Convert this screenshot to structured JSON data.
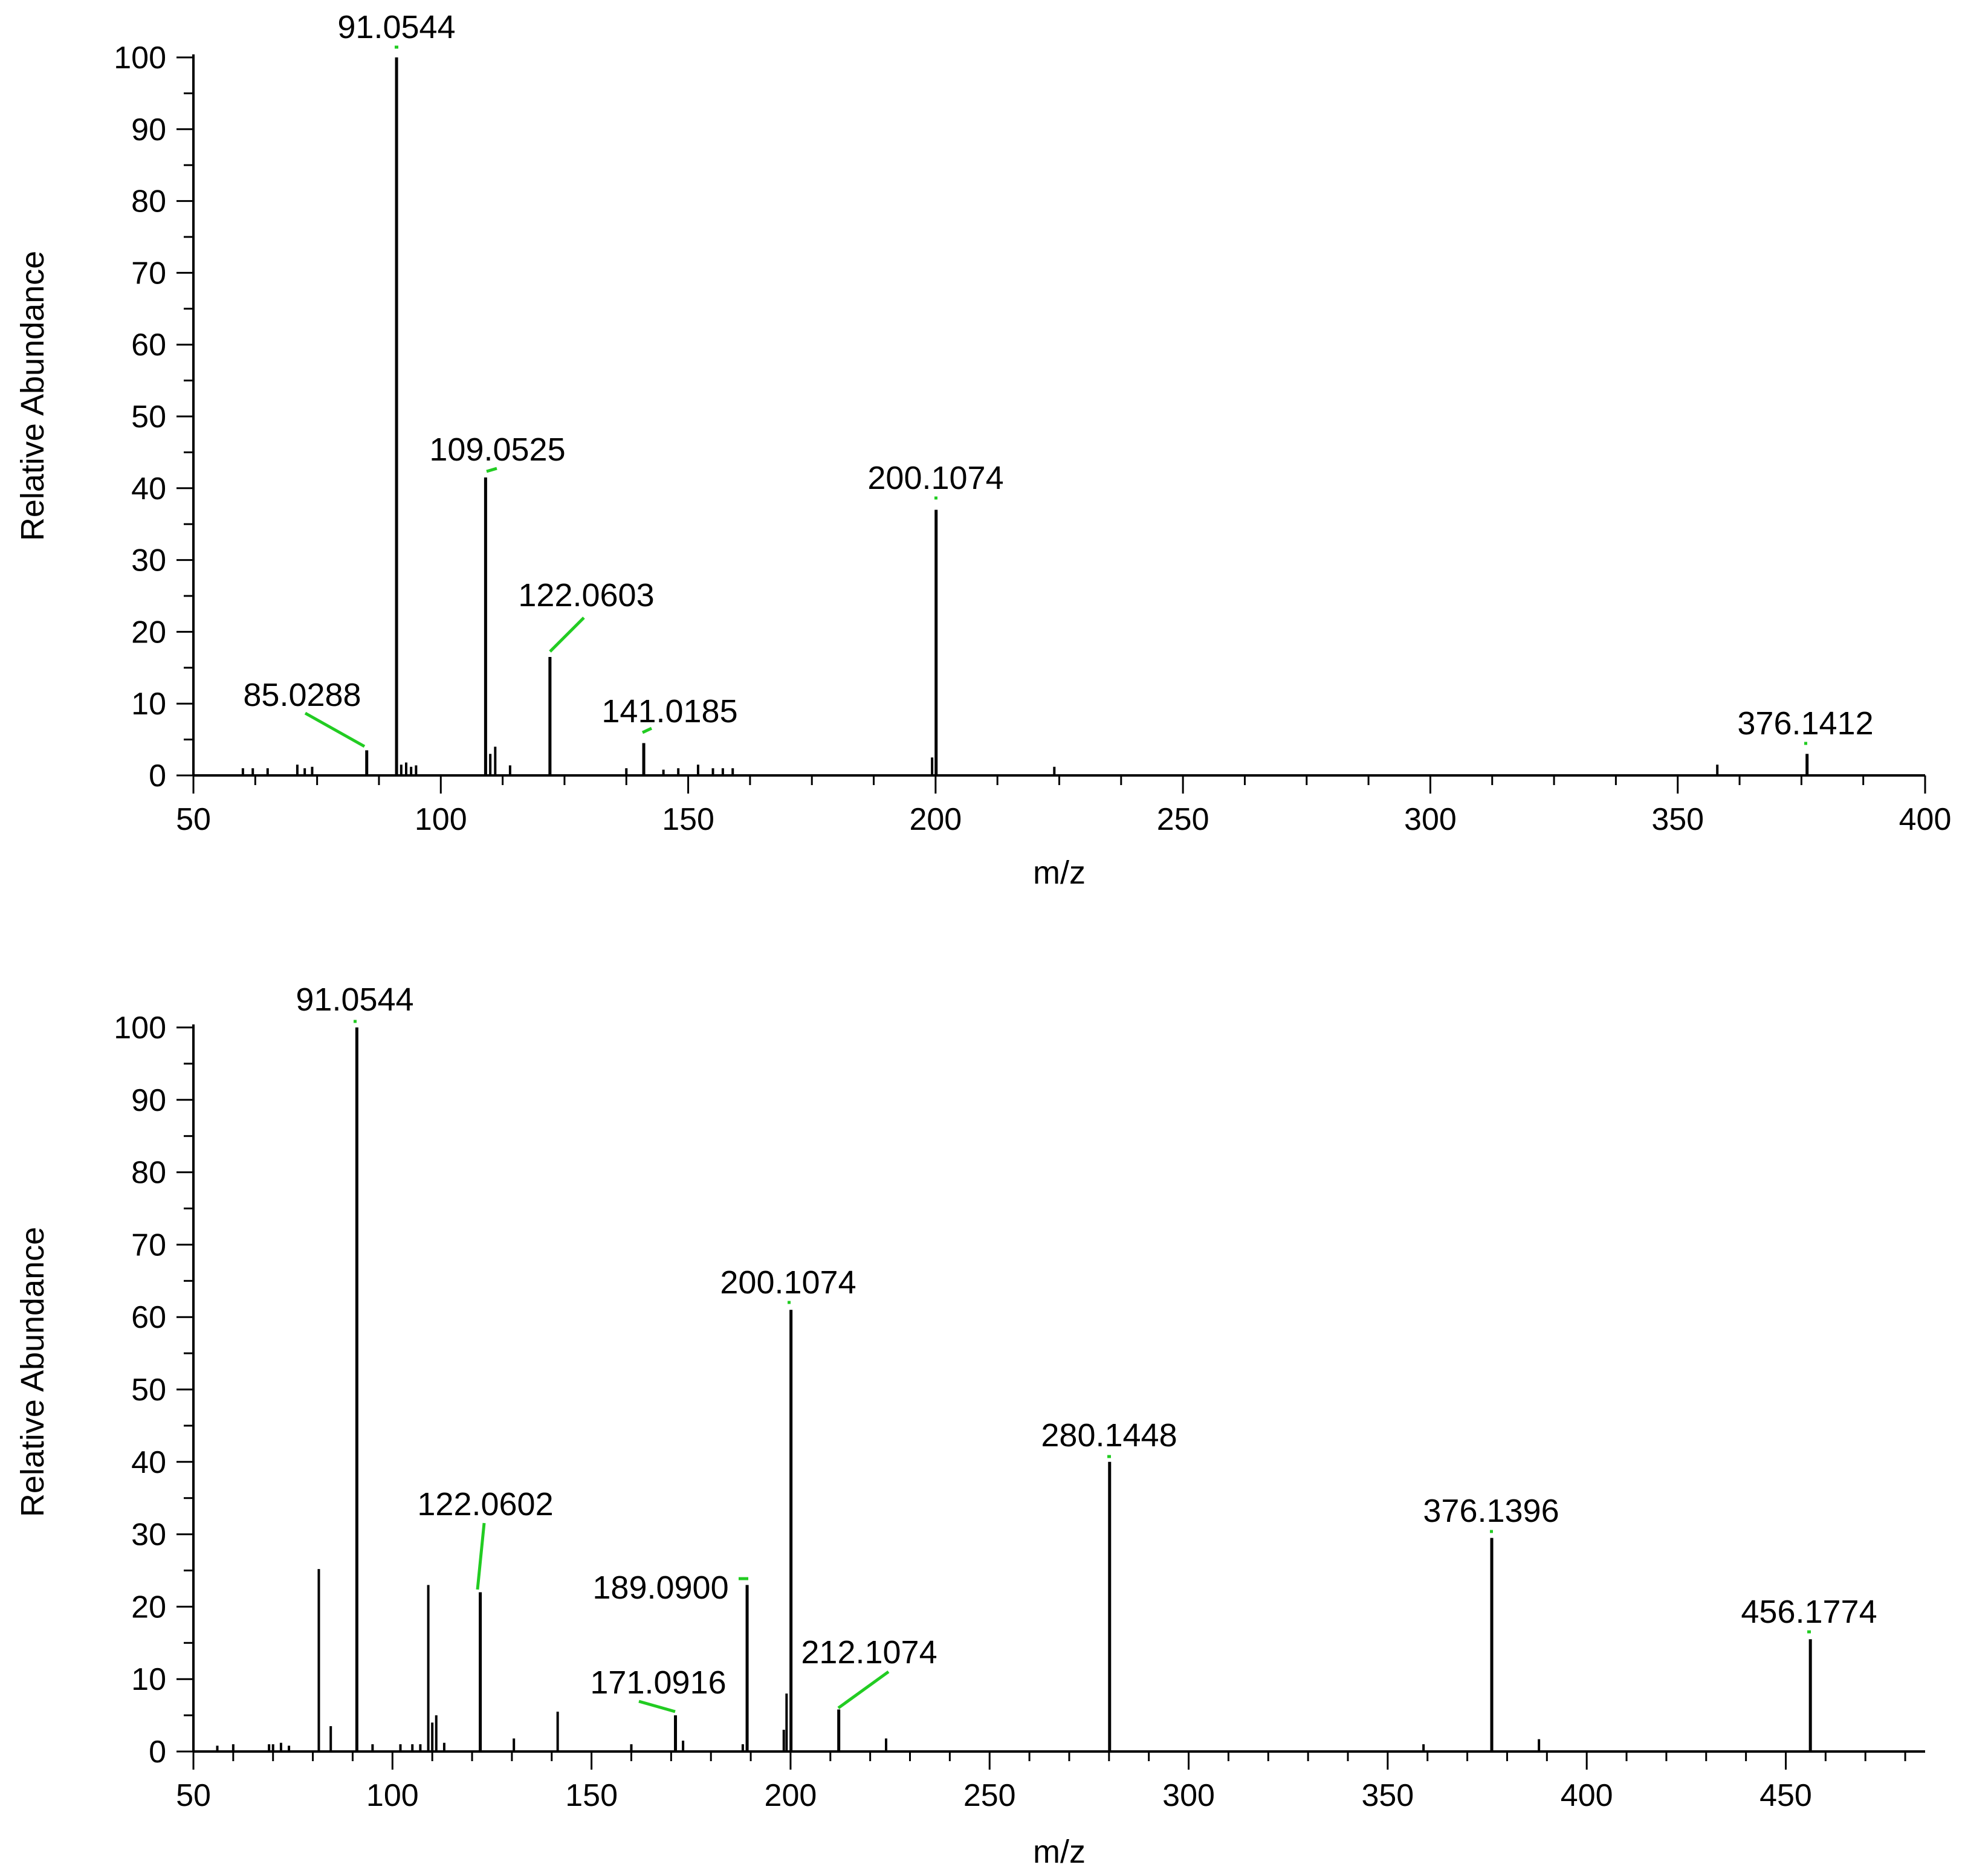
{
  "colors": {
    "axis": "#000000",
    "peak": "#000000",
    "annotation_line": "#22cc22"
  },
  "chart_data": [
    {
      "type": "bar",
      "xlabel": "m/z",
      "ylabel": "Relative Abundance",
      "xlim": [
        50,
        400
      ],
      "ylim": [
        0,
        100
      ],
      "x_ticks": [
        50,
        100,
        150,
        200,
        250,
        300,
        350,
        400
      ],
      "y_ticks": [
        0,
        10,
        20,
        30,
        40,
        50,
        60,
        70,
        80,
        90,
        100
      ],
      "grid": false,
      "labeled_peaks": [
        {
          "mz": 85.0288,
          "abundance": 3.5,
          "label": "85.0288"
        },
        {
          "mz": 91.0544,
          "abundance": 100,
          "label": "91.0544"
        },
        {
          "mz": 109.0525,
          "abundance": 41.5,
          "label": "109.0525"
        },
        {
          "mz": 122.0603,
          "abundance": 16.5,
          "label": "122.0603"
        },
        {
          "mz": 141.0185,
          "abundance": 4.5,
          "label": "141.0185"
        },
        {
          "mz": 200.1074,
          "abundance": 37,
          "label": "200.1074"
        },
        {
          "mz": 376.1412,
          "abundance": 3,
          "label": "376.1412"
        }
      ],
      "minor_peaks": [
        {
          "mz": 60,
          "abundance": 1
        },
        {
          "mz": 62,
          "abundance": 1
        },
        {
          "mz": 65,
          "abundance": 1
        },
        {
          "mz": 71,
          "abundance": 1.5
        },
        {
          "mz": 72.5,
          "abundance": 1
        },
        {
          "mz": 74,
          "abundance": 1.2
        },
        {
          "mz": 92,
          "abundance": 1.5
        },
        {
          "mz": 93,
          "abundance": 1.8
        },
        {
          "mz": 94,
          "abundance": 1.2
        },
        {
          "mz": 95,
          "abundance": 1.4
        },
        {
          "mz": 110,
          "abundance": 3
        },
        {
          "mz": 111,
          "abundance": 4
        },
        {
          "mz": 114,
          "abundance": 1.4
        },
        {
          "mz": 137.5,
          "abundance": 1
        },
        {
          "mz": 145,
          "abundance": 0.8
        },
        {
          "mz": 148,
          "abundance": 1
        },
        {
          "mz": 152,
          "abundance": 1.5
        },
        {
          "mz": 155,
          "abundance": 1
        },
        {
          "mz": 157,
          "abundance": 1
        },
        {
          "mz": 159,
          "abundance": 1
        },
        {
          "mz": 199.3,
          "abundance": 2.5
        },
        {
          "mz": 224,
          "abundance": 1.2
        },
        {
          "mz": 358,
          "abundance": 1.5
        }
      ]
    },
    {
      "type": "bar",
      "xlabel": "m/z",
      "ylabel": "Relative Abundance",
      "xlim": [
        50,
        485
      ],
      "ylim": [
        0,
        100
      ],
      "x_ticks": [
        50,
        100,
        150,
        200,
        250,
        300,
        350,
        400,
        450
      ],
      "y_ticks": [
        0,
        10,
        20,
        30,
        40,
        50,
        60,
        70,
        80,
        90,
        100
      ],
      "grid": false,
      "labeled_peaks": [
        {
          "mz": 91.0544,
          "abundance": 100,
          "label": "91.0544"
        },
        {
          "mz": 122.0602,
          "abundance": 22,
          "label": "122.0602"
        },
        {
          "mz": 171.0916,
          "abundance": 5,
          "label": "171.0916"
        },
        {
          "mz": 189.09,
          "abundance": 23,
          "label": "189.0900"
        },
        {
          "mz": 200.1074,
          "abundance": 61,
          "label": "200.1074"
        },
        {
          "mz": 212.1074,
          "abundance": 5.8,
          "label": "212.1074"
        },
        {
          "mz": 280.1448,
          "abundance": 40,
          "label": "280.1448"
        },
        {
          "mz": 376.1396,
          "abundance": 29.5,
          "label": "376.1396"
        },
        {
          "mz": 456.1774,
          "abundance": 15.5,
          "label": "456.1774"
        }
      ],
      "minor_peaks": [
        {
          "mz": 81.5,
          "abundance": 25.2
        },
        {
          "mz": 84.5,
          "abundance": 3.5
        },
        {
          "mz": 109,
          "abundance": 23
        },
        {
          "mz": 110,
          "abundance": 4
        },
        {
          "mz": 111,
          "abundance": 5
        },
        {
          "mz": 141.5,
          "abundance": 5.5
        },
        {
          "mz": 56,
          "abundance": 0.8
        },
        {
          "mz": 60,
          "abundance": 1
        },
        {
          "mz": 69,
          "abundance": 1
        },
        {
          "mz": 70,
          "abundance": 1
        },
        {
          "mz": 72,
          "abundance": 1.2
        },
        {
          "mz": 74,
          "abundance": 0.8
        },
        {
          "mz": 95,
          "abundance": 1
        },
        {
          "mz": 102,
          "abundance": 1
        },
        {
          "mz": 105,
          "abundance": 1
        },
        {
          "mz": 107,
          "abundance": 1
        },
        {
          "mz": 113,
          "abundance": 1.2
        },
        {
          "mz": 130.5,
          "abundance": 1.8
        },
        {
          "mz": 160,
          "abundance": 1
        },
        {
          "mz": 173,
          "abundance": 1.5
        },
        {
          "mz": 188,
          "abundance": 1
        },
        {
          "mz": 198.3,
          "abundance": 3
        },
        {
          "mz": 199,
          "abundance": 8
        },
        {
          "mz": 224,
          "abundance": 1.8
        },
        {
          "mz": 359,
          "abundance": 1
        },
        {
          "mz": 388,
          "abundance": 1.7
        }
      ]
    }
  ]
}
